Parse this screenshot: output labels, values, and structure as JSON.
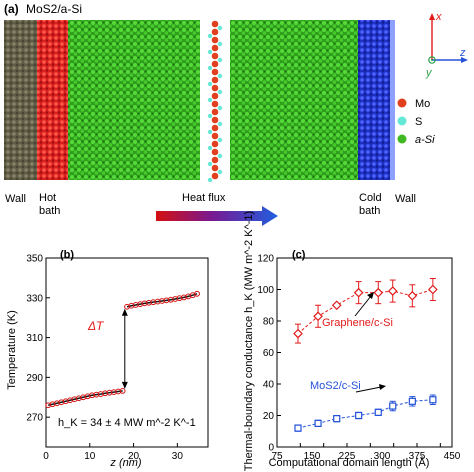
{
  "top_panel": {
    "label": "(a)",
    "system_title": "MoS2/a-Si",
    "labels": {
      "wall_left": "Wall",
      "hot_bath": [
        "Hot",
        "bath"
      ],
      "heat_flux": "Heat flux",
      "cold_bath": [
        "Cold",
        "bath"
      ],
      "wall_right": "Wall"
    },
    "legend": [
      {
        "name": "Mo",
        "color": "#e0401e"
      },
      {
        "name": "S",
        "color": "#66e8d6"
      },
      {
        "name": "a-Si",
        "color": "#3fb823"
      }
    ],
    "axes": {
      "x": "x",
      "y": "y",
      "z": "z"
    },
    "colors": {
      "wall": "#6b6b55",
      "hot": "#e52b2b",
      "cold": "#2638d8",
      "si": "#46c92c",
      "mo": "#e0401e",
      "s": "#66e8d6",
      "accent_red": "#e21a1a",
      "accent_blue": "#2452d8"
    }
  },
  "chart_data": [
    {
      "type": "line",
      "panel_label": "(b)",
      "xlabel": "z (nm)",
      "ylabel": "Temperature (K)",
      "xlim": [
        0,
        37
      ],
      "ylim": [
        255,
        350
      ],
      "xticks": [
        0,
        10,
        20,
        30
      ],
      "yticks": [
        270,
        290,
        310,
        330,
        350
      ],
      "annotation": "h_K = 34 ± 4 MW m^-2 K^-1",
      "jump_label": "ΔT",
      "series": [
        {
          "style": "red line with open circles",
          "x": [
            0.5,
            1.5,
            2.5,
            3.5,
            4.5,
            5.5,
            6.5,
            7.5,
            8.5,
            9.5,
            10.5,
            11.5,
            12.5,
            13.5,
            14.5,
            15.5,
            16.5,
            17.5,
            18.5,
            19.5,
            20.5,
            21.5,
            22.5,
            23.5,
            24.5,
            25.5,
            26.5,
            27.5,
            28.5,
            29.5,
            30.5,
            31.5,
            32.5,
            33.5,
            34.5
          ],
          "y": [
            276.0,
            276.5,
            277.0,
            277.5,
            278.0,
            278.5,
            279.0,
            279.5,
            280.0,
            280.5,
            281.0,
            281.3,
            281.6,
            282.0,
            282.3,
            282.6,
            282.9,
            283.2,
            325.5,
            326.0,
            326.4,
            326.8,
            327.2,
            327.5,
            327.8,
            328.1,
            328.4,
            328.7,
            329.0,
            329.4,
            329.8,
            330.2,
            330.7,
            331.3,
            332.0
          ]
        }
      ]
    },
    {
      "type": "line",
      "panel_label": "(c)",
      "xlabel": "Computational domain length (Å)",
      "ylabel": "Thermal-boundary conductance h_K (MW m^-2 K^-1)",
      "xlim": [
        75,
        450
      ],
      "ylim": [
        0,
        120
      ],
      "xticks": [
        75,
        125,
        175,
        225,
        275,
        325,
        375,
        425
      ],
      "xticklabels": [
        "75",
        "150",
        "225",
        "300",
        "375",
        "450"
      ],
      "xticklabel_values": [
        75,
        150,
        225,
        300,
        375,
        450
      ],
      "yticks": [
        0,
        20,
        40,
        60,
        80,
        100,
        120
      ],
      "series": [
        {
          "name": "Graphene/c-Si",
          "x": [
            120,
            163,
            203,
            250,
            292,
            323,
            365,
            409
          ],
          "y": [
            72,
            83,
            90,
            98,
            98,
            99,
            96,
            100
          ],
          "err": [
            6,
            7,
            0,
            7,
            7,
            7,
            7,
            7
          ],
          "color": "#e21a1a",
          "marker": "diamond"
        },
        {
          "name": "MoS2/c-Si",
          "x": [
            120,
            163,
            203,
            250,
            292,
            323,
            365,
            409
          ],
          "y": [
            12,
            15,
            18,
            20,
            22,
            26,
            29,
            30
          ],
          "err": [
            2,
            2,
            2,
            2,
            2,
            3,
            3,
            3
          ],
          "color": "#2452d8",
          "marker": "square"
        }
      ]
    }
  ]
}
